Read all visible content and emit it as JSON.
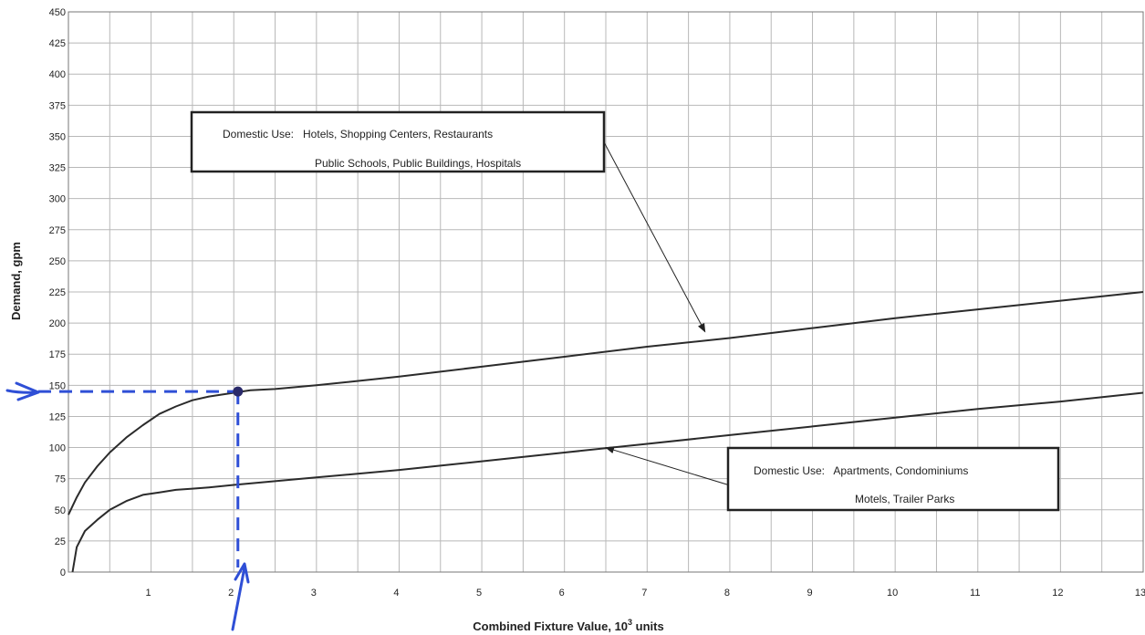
{
  "chart_data": {
    "type": "line",
    "xlabel": "Combined Fixture Value, 10",
    "xlabel_sup": "3",
    "xlabel_suffix": " units",
    "ylabel": "Demand, gpm",
    "xlim": [
      0,
      13
    ],
    "ylim": [
      0,
      450
    ],
    "x_ticks": [
      1,
      2,
      3,
      4,
      5,
      6,
      7,
      8,
      9,
      10,
      11,
      12,
      13
    ],
    "y_ticks": [
      0,
      25,
      50,
      75,
      100,
      125,
      150,
      175,
      200,
      225,
      250,
      275,
      300,
      325,
      350,
      375,
      400,
      425,
      450
    ],
    "x_minor_step": 0.5,
    "grid": true,
    "series": [
      {
        "x": [
          0,
          0.1,
          0.2,
          0.35,
          0.5,
          0.7,
          0.9,
          1.1,
          1.3,
          1.5,
          1.7,
          1.9,
          2.0,
          2.2,
          2.5,
          3,
          4,
          5,
          6,
          7,
          8,
          9,
          10,
          11,
          12,
          13
        ],
        "y": [
          46,
          60,
          72,
          85,
          96,
          108,
          118,
          127,
          133,
          138,
          141,
          143,
          144,
          146,
          147,
          150,
          157,
          165,
          173,
          181,
          188,
          196,
          204,
          211,
          218,
          225
        ]
      },
      {
        "x": [
          0.05,
          0.1,
          0.2,
          0.35,
          0.5,
          0.7,
          0.9,
          1.1,
          1.3,
          1.5,
          1.7,
          2.0,
          2.5,
          3,
          4,
          5,
          6,
          7,
          8,
          9,
          10,
          11,
          12,
          13
        ],
        "y": [
          0,
          20,
          33,
          42,
          50,
          57,
          62,
          64,
          66,
          67,
          68,
          70,
          73,
          76,
          82,
          89,
          96,
          103,
          110,
          117,
          124,
          131,
          137,
          144
        ]
      }
    ],
    "annotations": [
      {
        "line1": "Domestic Use:   Hotels, Shopping Centers, Restaurants",
        "line2": "Public Schools, Public Buildings, Hospitals",
        "points_to": [
          7.7,
          193
        ]
      },
      {
        "line1": "Domestic Use:   Apartments, Condominiums",
        "line2": "Motels, Trailer Parks",
        "points_to": [
          6.5,
          100
        ]
      }
    ],
    "handwritten_markup": {
      "color": "#2f4fd6",
      "point": [
        2.05,
        145
      ],
      "style": "dashed lines from the point to both axes, with arrowheads at the axes"
    }
  }
}
